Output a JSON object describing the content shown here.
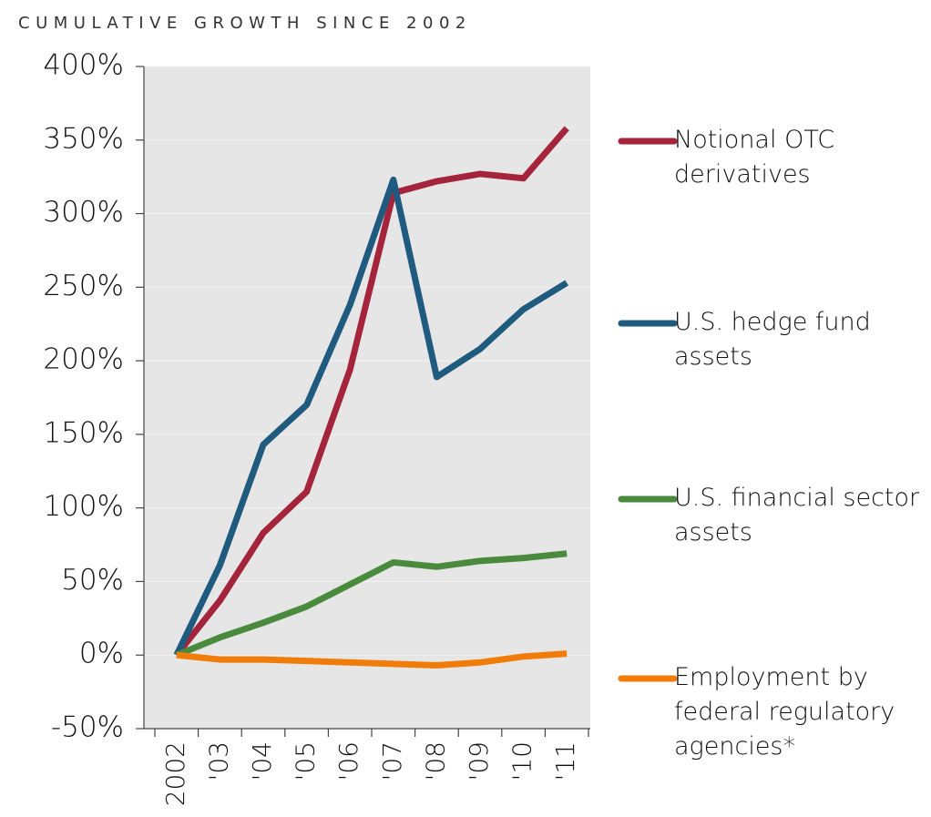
{
  "chart_data": {
    "type": "line",
    "title": "CUMULATIVE GROWTH SINCE 2002",
    "categories": [
      "2002",
      "'03",
      "'04",
      "'05",
      "'06",
      "'07",
      "'08",
      "'09",
      "'10",
      "'11"
    ],
    "series": [
      {
        "name": "Notional OTC derivatives",
        "color": "#a4243b",
        "values": [
          0,
          37,
          83,
          111,
          194,
          314,
          322,
          327,
          324,
          358
        ]
      },
      {
        "name": "U.S. hedge fund assets",
        "color": "#1f5a7f",
        "values": [
          0,
          61,
          143,
          170,
          238,
          323,
          189,
          208,
          235,
          253
        ]
      },
      {
        "name": "U.S. financial sector assets",
        "color": "#4a8a3c",
        "values": [
          0,
          12,
          22,
          33,
          48,
          63,
          60,
          64,
          66,
          69
        ]
      },
      {
        "name": "Employment by federal regulatory agencies*",
        "color": "#f07d0a",
        "values": [
          0,
          -3,
          -3,
          -4,
          -5,
          -6,
          -7,
          -5,
          -1,
          1
        ]
      }
    ],
    "ylim": [
      -50,
      400
    ],
    "yticks": [
      {
        "value": -50,
        "label": "-50%"
      },
      {
        "value": 0,
        "label": "0%"
      },
      {
        "value": 50,
        "label": "50%"
      },
      {
        "value": 100,
        "label": "100%"
      },
      {
        "value": 150,
        "label": "150%"
      },
      {
        "value": 200,
        "label": "200%"
      },
      {
        "value": 250,
        "label": "250%"
      },
      {
        "value": 300,
        "label": "300%"
      },
      {
        "value": 350,
        "label": "350%"
      },
      {
        "value": 400,
        "label": "400%"
      }
    ],
    "grid": true
  }
}
